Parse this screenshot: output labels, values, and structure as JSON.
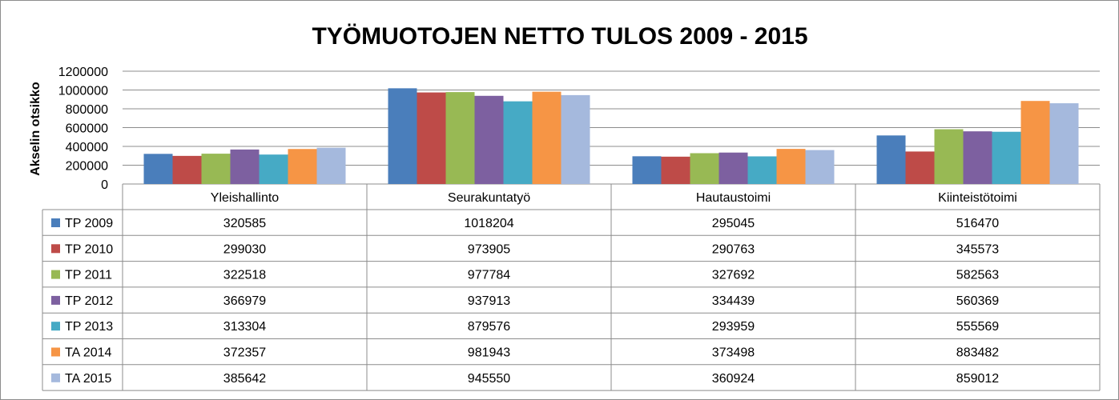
{
  "chart_data": {
    "type": "bar",
    "title": "TYÖMUOTOJEN NETTO TULOS 2009 - 2015",
    "xlabel": "",
    "ylabel": "Akselin otsikko",
    "ylim": [
      0,
      1200000
    ],
    "yticks": [
      0,
      200000,
      400000,
      600000,
      800000,
      1000000,
      1200000
    ],
    "grid": true,
    "legend": "data-table-left",
    "categories": [
      "Yleishallinto",
      "Seurakuntatyö",
      "Hautaustoimi",
      "Kiinteistötoimi"
    ],
    "series": [
      {
        "name": "TP 2009",
        "color": "#4a7ebb",
        "values": [
          320585,
          1018204,
          295045,
          516470
        ]
      },
      {
        "name": "TP 2010",
        "color": "#be4b48",
        "values": [
          299030,
          973905,
          290763,
          345573
        ]
      },
      {
        "name": "TP 2011",
        "color": "#98b954",
        "values": [
          322518,
          977784,
          327692,
          582563
        ]
      },
      {
        "name": "TP 2012",
        "color": "#7d60a0",
        "values": [
          366979,
          937913,
          334439,
          560369
        ]
      },
      {
        "name": "TP 2013",
        "color": "#46aac5",
        "values": [
          313304,
          879576,
          293959,
          555569
        ]
      },
      {
        "name": "TA 2014",
        "color": "#f69545",
        "values": [
          372357,
          981943,
          373498,
          883482
        ]
      },
      {
        "name": "TA 2015",
        "color": "#a5b9dd",
        "values": [
          385642,
          945550,
          360924,
          859012
        ]
      }
    ]
  }
}
